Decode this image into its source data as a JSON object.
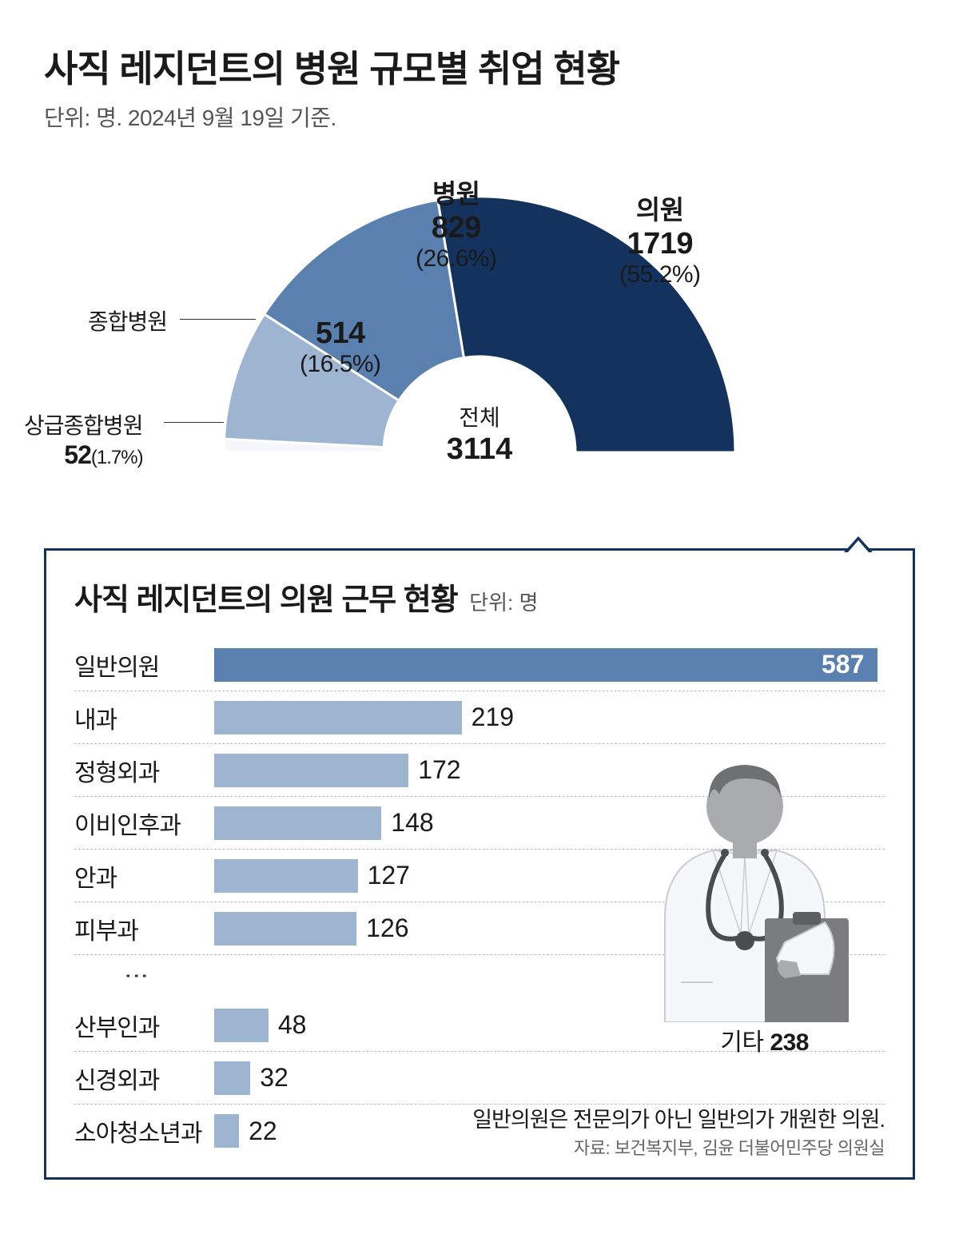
{
  "title": "사직 레지던트의 병원 규모별 취업 현황",
  "subtitle": "단위: 명. 2024년 9월 19일 기준.",
  "donut": {
    "type": "half-donut",
    "center_label": "전체",
    "total": "3114",
    "inner_radius": 120,
    "outer_radius": 320,
    "background_color": "#ffffff",
    "slices": [
      {
        "name": "의원",
        "value": "1719",
        "percent": "(55.2%)",
        "color": "#13335e",
        "angle_deg": 99.4
      },
      {
        "name": "병원",
        "value": "829",
        "percent": "(26.6%)",
        "color": "#5a80b0",
        "angle_deg": 47.9
      },
      {
        "name": "종합병원",
        "value": "514",
        "percent": "(16.5%)",
        "color": "#9db5d1",
        "angle_deg": 29.7
      },
      {
        "name": "상급종합병원",
        "value": "52",
        "percent": "(1.7%)",
        "color": "#f5f7fb",
        "angle_deg": 3.0
      }
    ]
  },
  "box": {
    "title": "사직 레지던트의 의원 근무 현황",
    "unit": "단위: 명",
    "border_color": "#13335e",
    "max_value": 587,
    "highlight_color": "#5a80b0",
    "normal_color": "#9db5d1",
    "bars": [
      {
        "label": "일반의원",
        "value": "587",
        "highlight": true,
        "value_inside": true
      },
      {
        "label": "내과",
        "value": "219",
        "highlight": false
      },
      {
        "label": "정형외과",
        "value": "172",
        "highlight": false
      },
      {
        "label": "이비인후과",
        "value": "148",
        "highlight": false
      },
      {
        "label": "안과",
        "value": "127",
        "highlight": false
      },
      {
        "label": "피부과",
        "value": "126",
        "highlight": false
      }
    ],
    "ellipsis": "⋮",
    "bars_after": [
      {
        "label": "산부인과",
        "value": "48",
        "highlight": false
      },
      {
        "label": "신경외과",
        "value": "32",
        "highlight": false
      },
      {
        "label": "소아청소년과",
        "value": "22",
        "highlight": false
      }
    ],
    "etc": {
      "label": "기타",
      "value": "238"
    },
    "footnote": "일반의원은 전문의가 아닌 일반의가 개원한 의원.",
    "source": "자료: 보건복지부, 김윤 더불어민주당 의원실"
  },
  "doctor_icon": {
    "coat_color": "#f6f7f8",
    "coat_stroke": "#c9ccd0",
    "skin_color": "#a9abad",
    "hair_color": "#6e7072",
    "clipboard_color": "#7a7c7e",
    "stethoscope_color": "#4a4c4e"
  }
}
